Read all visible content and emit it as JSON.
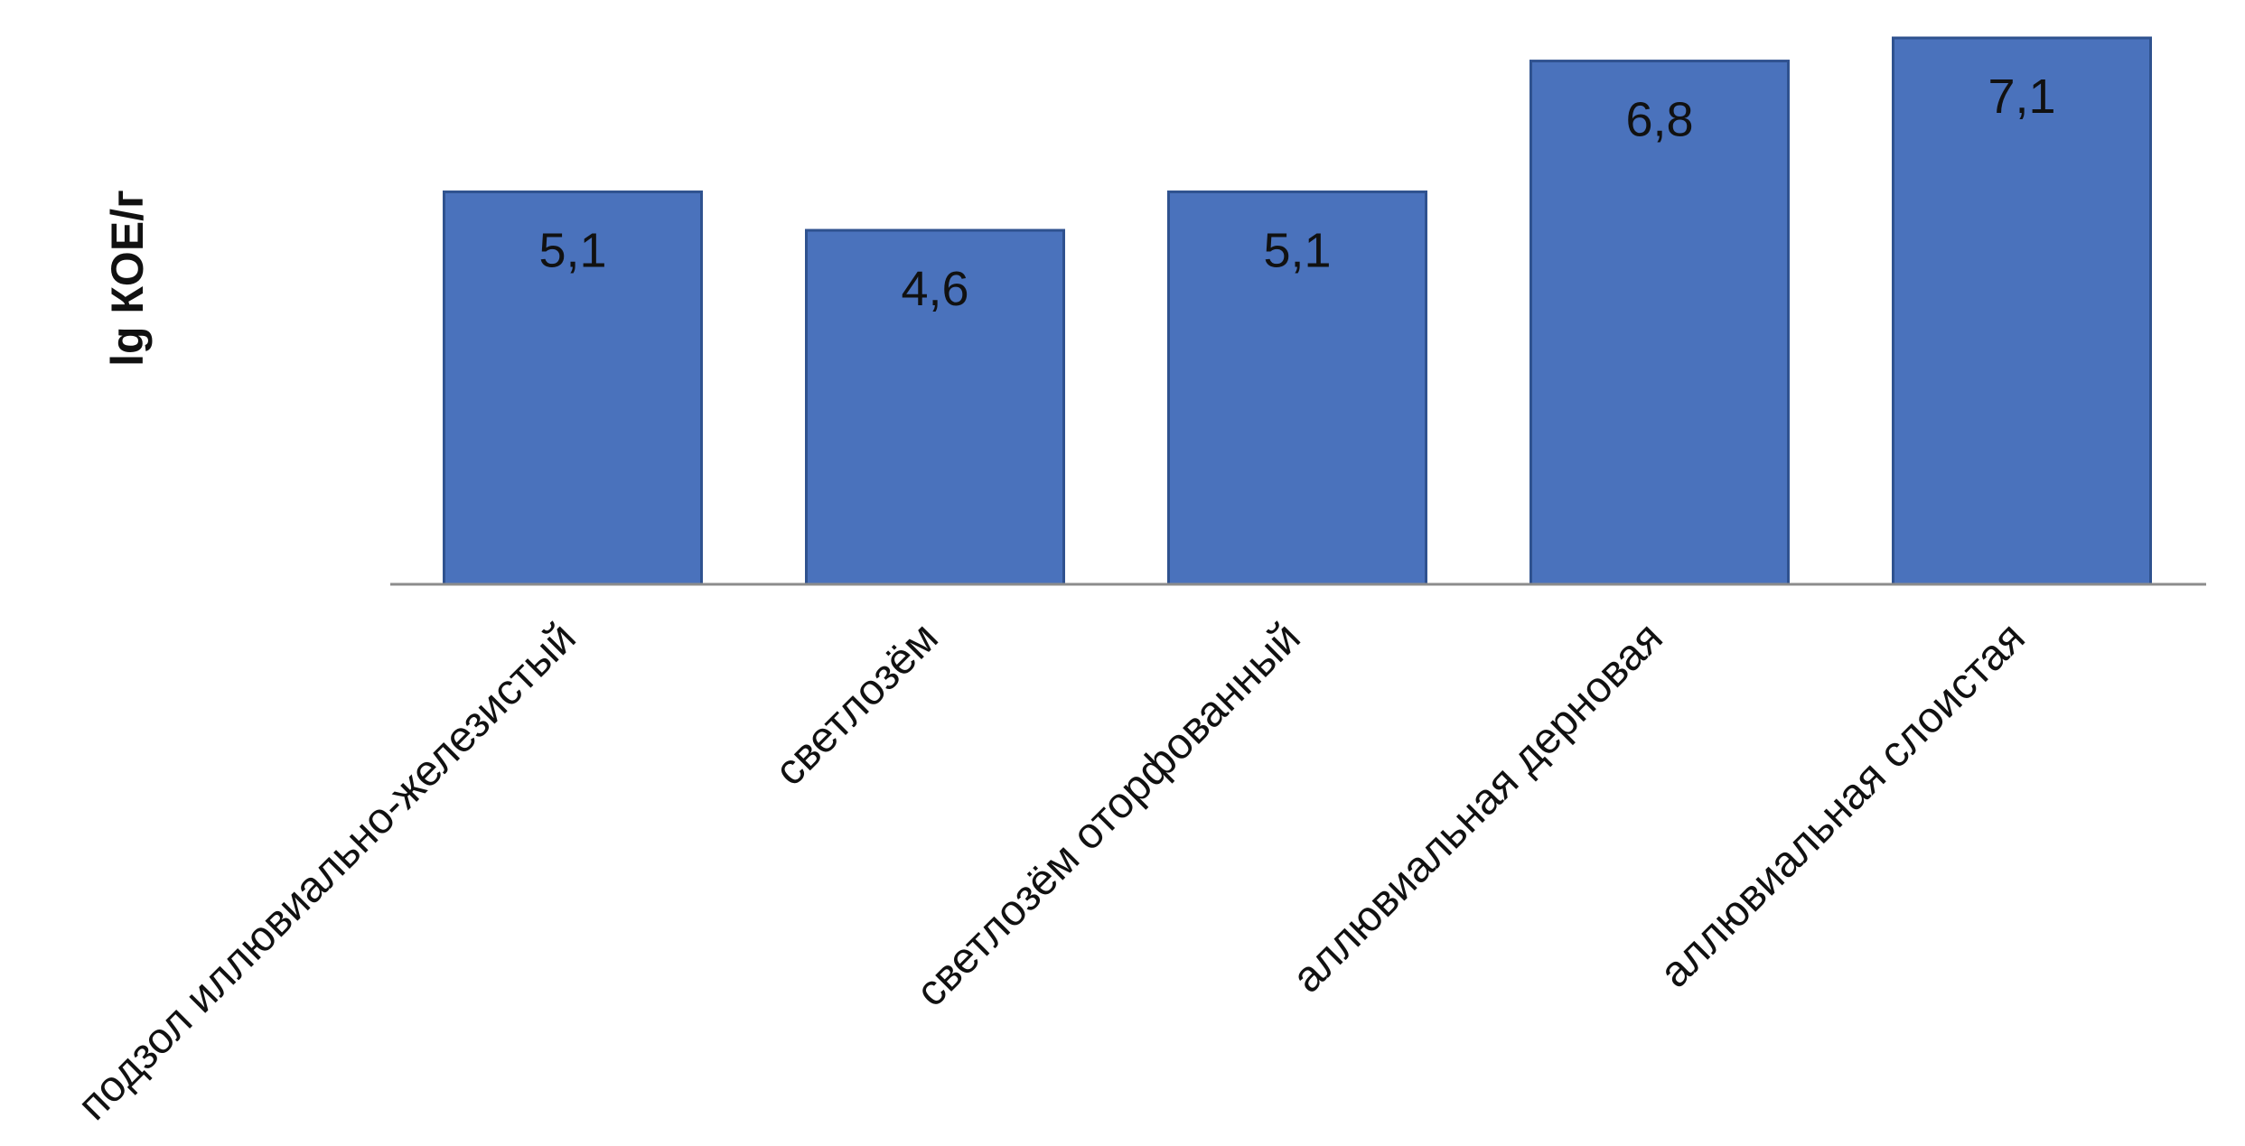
{
  "chart_data": {
    "type": "bar",
    "title": "",
    "xlabel": "",
    "ylabel": "lg КОЕ/г",
    "categories": [
      "подзол иллювиально-железистый",
      "светлозём",
      "светлозём оторфованный",
      "аллювиальная дерновая",
      "аллювиальная слоистая"
    ],
    "values": [
      5.1,
      4.6,
      5.1,
      6.8,
      7.1
    ],
    "data_labels": [
      "5,1",
      "4,6",
      "5,1",
      "6,8",
      "7,1"
    ],
    "ylim": [
      0,
      7.1
    ],
    "grid": false,
    "legend": "none",
    "bar_color": "#4a72bc",
    "bar_edge_color": "#2f528f",
    "axis_color": "#8c8c8c"
  }
}
